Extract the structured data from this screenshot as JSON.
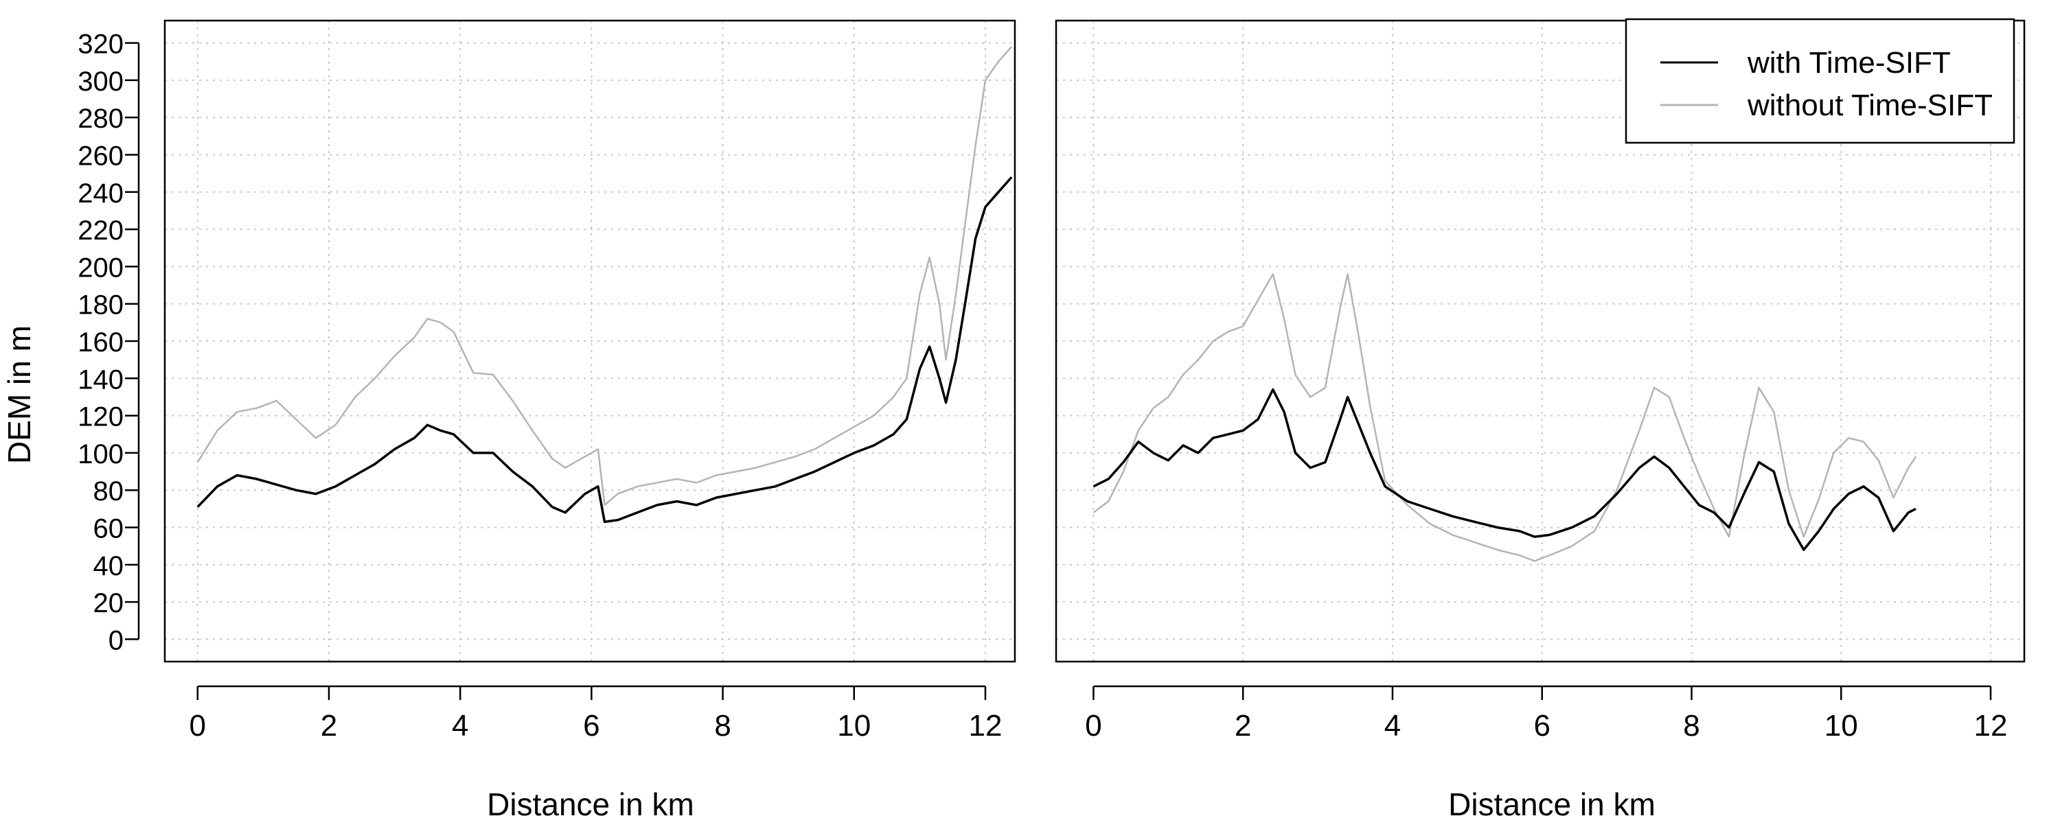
{
  "figure": {
    "ylabel": "DEM in m",
    "xlabel_left": "Distance in km",
    "xlabel_right": "Distance in km"
  },
  "legend": {
    "items": [
      {
        "label": "with Time-SIFT",
        "color": "#000000"
      },
      {
        "label": "without Time-SIFT",
        "color": "#b4b4b4"
      }
    ],
    "placement": "top-right of right panel"
  },
  "chart_data": [
    {
      "type": "line",
      "title": "",
      "xlabel": "Distance in km",
      "ylabel": "DEM in m",
      "xlim": [
        -0.5,
        12.45
      ],
      "ylim": [
        -12,
        332
      ],
      "xticks": [
        0,
        2,
        4,
        6,
        8,
        10,
        12
      ],
      "yticks": [
        0,
        20,
        40,
        60,
        80,
        100,
        120,
        140,
        160,
        180,
        200,
        220,
        240,
        260,
        280,
        300,
        320
      ],
      "grid": true,
      "series": [
        {
          "name": "with Time-SIFT",
          "color": "#000000",
          "x": [
            0,
            0.3,
            0.6,
            0.9,
            1.2,
            1.5,
            1.8,
            2.1,
            2.4,
            2.7,
            3.0,
            3.3,
            3.5,
            3.7,
            3.9,
            4.2,
            4.5,
            4.8,
            5.1,
            5.4,
            5.6,
            5.9,
            6.1,
            6.2,
            6.4,
            6.7,
            7.0,
            7.3,
            7.6,
            7.9,
            8.2,
            8.5,
            8.8,
            9.1,
            9.4,
            9.7,
            10.0,
            10.3,
            10.6,
            10.8,
            11.0,
            11.15,
            11.3,
            11.4,
            11.55,
            11.7,
            11.85,
            12.0,
            12.2,
            12.4
          ],
          "y": [
            71,
            82,
            88,
            86,
            83,
            80,
            78,
            82,
            88,
            94,
            102,
            108,
            115,
            112,
            110,
            100,
            100,
            90,
            82,
            71,
            68,
            78,
            82,
            63,
            64,
            68,
            72,
            74,
            72,
            76,
            78,
            80,
            82,
            86,
            90,
            95,
            100,
            104,
            110,
            118,
            145,
            157,
            140,
            127,
            150,
            182,
            215,
            232,
            240,
            248
          ]
        },
        {
          "name": "without Time-SIFT",
          "color": "#b4b4b4",
          "x": [
            0,
            0.3,
            0.6,
            0.9,
            1.2,
            1.5,
            1.8,
            2.1,
            2.4,
            2.7,
            3.0,
            3.3,
            3.5,
            3.7,
            3.9,
            4.2,
            4.5,
            4.8,
            5.1,
            5.4,
            5.6,
            5.9,
            6.1,
            6.2,
            6.4,
            6.7,
            7.0,
            7.3,
            7.6,
            7.9,
            8.2,
            8.5,
            8.8,
            9.1,
            9.4,
            9.7,
            10.0,
            10.3,
            10.6,
            10.8,
            11.0,
            11.15,
            11.3,
            11.4,
            11.55,
            11.7,
            11.85,
            12.0,
            12.2,
            12.4
          ],
          "y": [
            95,
            112,
            122,
            124,
            128,
            118,
            108,
            115,
            130,
            140,
            152,
            162,
            172,
            170,
            165,
            143,
            142,
            128,
            112,
            97,
            92,
            98,
            102,
            72,
            78,
            82,
            84,
            86,
            84,
            88,
            90,
            92,
            95,
            98,
            102,
            108,
            114,
            120,
            130,
            140,
            185,
            205,
            180,
            150,
            185,
            225,
            265,
            300,
            310,
            318
          ]
        }
      ]
    },
    {
      "type": "line",
      "title": "",
      "xlabel": "Distance in km",
      "ylabel": "",
      "xlim": [
        -0.5,
        12.45
      ],
      "ylim": [
        -12,
        332
      ],
      "xticks": [
        0,
        2,
        4,
        6,
        8,
        10,
        12
      ],
      "grid": true,
      "series": [
        {
          "name": "with Time-SIFT",
          "color": "#000000",
          "x": [
            0,
            0.2,
            0.4,
            0.6,
            0.8,
            1.0,
            1.2,
            1.4,
            1.6,
            1.8,
            2.0,
            2.2,
            2.4,
            2.55,
            2.7,
            2.9,
            3.1,
            3.3,
            3.4,
            3.55,
            3.7,
            3.9,
            4.2,
            4.5,
            4.8,
            5.1,
            5.4,
            5.7,
            5.9,
            6.1,
            6.4,
            6.7,
            7.0,
            7.3,
            7.5,
            7.7,
            7.9,
            8.1,
            8.3,
            8.5,
            8.7,
            8.9,
            9.1,
            9.3,
            9.5,
            9.7,
            9.9,
            10.1,
            10.3,
            10.5,
            10.7,
            10.9,
            11.0
          ],
          "y": [
            82,
            86,
            95,
            106,
            100,
            96,
            104,
            100,
            108,
            110,
            112,
            118,
            134,
            122,
            100,
            92,
            95,
            118,
            130,
            115,
            100,
            82,
            74,
            70,
            66,
            63,
            60,
            58,
            55,
            56,
            60,
            66,
            78,
            92,
            98,
            92,
            82,
            72,
            68,
            60,
            78,
            95,
            90,
            62,
            48,
            58,
            70,
            78,
            82,
            76,
            58,
            68,
            70
          ]
        },
        {
          "name": "without Time-SIFT",
          "color": "#b4b4b4",
          "x": [
            0,
            0.2,
            0.4,
            0.6,
            0.8,
            1.0,
            1.2,
            1.4,
            1.6,
            1.8,
            2.0,
            2.2,
            2.4,
            2.55,
            2.7,
            2.9,
            3.1,
            3.3,
            3.4,
            3.55,
            3.7,
            3.9,
            4.2,
            4.5,
            4.8,
            5.1,
            5.4,
            5.7,
            5.9,
            6.1,
            6.4,
            6.7,
            7.0,
            7.3,
            7.5,
            7.7,
            7.9,
            8.1,
            8.3,
            8.5,
            8.7,
            8.9,
            9.1,
            9.3,
            9.5,
            9.7,
            9.9,
            10.1,
            10.3,
            10.5,
            10.7,
            10.9,
            11.0
          ],
          "y": [
            68,
            74,
            90,
            112,
            124,
            130,
            142,
            150,
            160,
            165,
            168,
            182,
            196,
            172,
            142,
            130,
            135,
            178,
            196,
            162,
            125,
            85,
            72,
            62,
            56,
            52,
            48,
            45,
            42,
            45,
            50,
            58,
            80,
            112,
            135,
            130,
            108,
            88,
            70,
            55,
            98,
            135,
            122,
            80,
            55,
            75,
            100,
            108,
            106,
            96,
            76,
            92,
            98
          ]
        }
      ]
    }
  ]
}
